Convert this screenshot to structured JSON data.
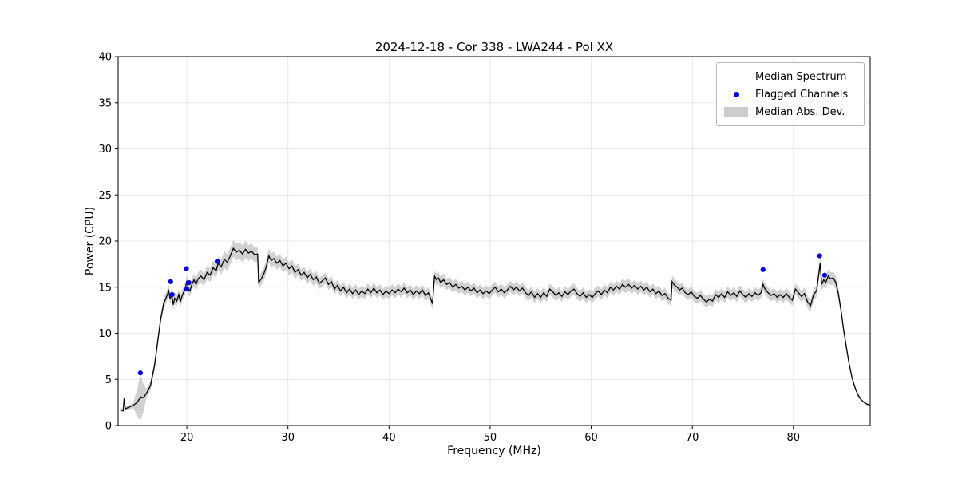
{
  "chart_data": {
    "type": "line",
    "title": "2024-12-18 - Cor 338 - LWA244 - Pol XX",
    "xlabel": "Frequency (MHz)",
    "ylabel": "Power (CPU)",
    "xlim": [
      13.2,
      87.6
    ],
    "ylim": [
      0,
      40
    ],
    "xticks": [
      20,
      30,
      40,
      50,
      60,
      70,
      80
    ],
    "yticks": [
      0,
      5,
      10,
      15,
      20,
      25,
      30,
      35,
      40
    ],
    "grid": true,
    "colors": {
      "line": "#000000",
      "flagged": "#0000ff",
      "band": "#cccccc",
      "grid": "#e8e8e8",
      "frame": "#000000"
    },
    "legend": {
      "position": "upper right",
      "entries": [
        {
          "label": "Median Spectrum",
          "type": "line",
          "color": "#000000"
        },
        {
          "label": "Flagged Channels",
          "type": "marker",
          "color": "#0000ff"
        },
        {
          "label": "Median Abs. Dev.",
          "type": "band",
          "color": "#cccccc"
        }
      ]
    },
    "series": {
      "name": "Median Spectrum",
      "note": "points are [frequency_MHz, power_CPU, median_abs_dev]",
      "points": [
        [
          13.4,
          1.7,
          0.2
        ],
        [
          13.7,
          1.6,
          0.2
        ],
        [
          13.8,
          3.0,
          0.2
        ],
        [
          13.9,
          1.8,
          0.2
        ],
        [
          14.3,
          2.0,
          0.25
        ],
        [
          14.7,
          2.2,
          0.3
        ],
        [
          15.1,
          2.5,
          1.5
        ],
        [
          15.4,
          3.1,
          2.5
        ],
        [
          15.7,
          3.0,
          1.5
        ],
        [
          16.0,
          3.5,
          0.5
        ],
        [
          16.4,
          4.3,
          0.5
        ],
        [
          16.8,
          6.5,
          0.5
        ],
        [
          17.1,
          9.0,
          0.55
        ],
        [
          17.4,
          11.5,
          0.55
        ],
        [
          17.7,
          13.2,
          0.6
        ],
        [
          18.0,
          14.0,
          0.6
        ],
        [
          18.2,
          14.6,
          0.6
        ],
        [
          18.35,
          13.7,
          0.6
        ],
        [
          18.5,
          14.2,
          0.6
        ],
        [
          18.65,
          13.1,
          0.6
        ],
        [
          18.8,
          13.8,
          0.6
        ],
        [
          19.0,
          13.5,
          0.6
        ],
        [
          19.2,
          14.2,
          0.6
        ],
        [
          19.35,
          13.4,
          0.6
        ],
        [
          19.5,
          14.0,
          0.6
        ],
        [
          19.7,
          14.5,
          0.65
        ],
        [
          19.9,
          15.1,
          0.65
        ],
        [
          20.0,
          15.7,
          0.65
        ],
        [
          20.15,
          14.8,
          0.65
        ],
        [
          20.3,
          14.6,
          0.65
        ],
        [
          20.5,
          15.3,
          0.65
        ],
        [
          20.7,
          15.8,
          0.65
        ],
        [
          20.9,
          15.3,
          0.7
        ],
        [
          21.1,
          15.9,
          0.7
        ],
        [
          21.4,
          16.2,
          0.7
        ],
        [
          21.7,
          15.8,
          0.7
        ],
        [
          22.0,
          16.6,
          0.7
        ],
        [
          22.3,
          16.3,
          0.75
        ],
        [
          22.6,
          17.1,
          0.75
        ],
        [
          22.9,
          16.8,
          0.75
        ],
        [
          23.1,
          17.6,
          0.75
        ],
        [
          23.4,
          17.2,
          0.8
        ],
        [
          23.7,
          18.0,
          0.9
        ],
        [
          24.0,
          17.7,
          0.9
        ],
        [
          24.3,
          18.4,
          0.9
        ],
        [
          24.6,
          19.2,
          0.9
        ],
        [
          24.9,
          18.8,
          0.9
        ],
        [
          25.2,
          19.0,
          0.9
        ],
        [
          25.5,
          18.6,
          0.9
        ],
        [
          25.8,
          19.1,
          0.9
        ],
        [
          26.1,
          18.7,
          0.85
        ],
        [
          26.4,
          18.9,
          0.85
        ],
        [
          26.7,
          18.5,
          0.8
        ],
        [
          27.0,
          18.6,
          0.8
        ],
        [
          27.1,
          15.5,
          0.7
        ],
        [
          27.35,
          15.9,
          0.7
        ],
        [
          27.6,
          16.4,
          0.7
        ],
        [
          27.85,
          17.2,
          0.75
        ],
        [
          28.1,
          18.4,
          0.75
        ],
        [
          28.35,
          17.9,
          0.75
        ],
        [
          28.6,
          18.1,
          0.75
        ],
        [
          28.9,
          17.6,
          0.7
        ],
        [
          29.2,
          17.9,
          0.7
        ],
        [
          29.5,
          17.3,
          0.7
        ],
        [
          29.8,
          17.6,
          0.7
        ],
        [
          30.1,
          17.0,
          0.7
        ],
        [
          30.4,
          17.3,
          0.7
        ],
        [
          30.7,
          16.6,
          0.7
        ],
        [
          31.0,
          16.9,
          0.65
        ],
        [
          31.3,
          16.3,
          0.65
        ],
        [
          31.6,
          16.6,
          0.65
        ],
        [
          31.9,
          16.0,
          0.65
        ],
        [
          32.2,
          16.4,
          0.65
        ],
        [
          32.5,
          15.8,
          0.65
        ],
        [
          32.8,
          16.1,
          0.65
        ],
        [
          33.1,
          15.4,
          0.6
        ],
        [
          33.4,
          15.7,
          0.6
        ],
        [
          33.7,
          16.0,
          0.6
        ],
        [
          34.0,
          15.3,
          0.6
        ],
        [
          34.3,
          15.6,
          0.6
        ],
        [
          34.6,
          14.8,
          0.6
        ],
        [
          34.9,
          15.2,
          0.6
        ],
        [
          35.2,
          14.6,
          0.6
        ],
        [
          35.5,
          15.0,
          0.6
        ],
        [
          35.8,
          14.4,
          0.6
        ],
        [
          36.1,
          14.8,
          0.6
        ],
        [
          36.4,
          14.3,
          0.6
        ],
        [
          36.7,
          14.7,
          0.6
        ],
        [
          37.0,
          14.2,
          0.6
        ],
        [
          37.3,
          14.6,
          0.6
        ],
        [
          37.6,
          14.3,
          0.6
        ],
        [
          37.9,
          14.8,
          0.6
        ],
        [
          38.2,
          14.4,
          0.6
        ],
        [
          38.5,
          14.9,
          0.6
        ],
        [
          38.8,
          14.4,
          0.6
        ],
        [
          39.1,
          14.7,
          0.6
        ],
        [
          39.4,
          14.2,
          0.6
        ],
        [
          39.7,
          14.6,
          0.6
        ],
        [
          40.0,
          14.3,
          0.6
        ],
        [
          40.3,
          14.7,
          0.6
        ],
        [
          40.6,
          14.4,
          0.6
        ],
        [
          40.9,
          14.8,
          0.6
        ],
        [
          41.2,
          14.5,
          0.6
        ],
        [
          41.5,
          14.9,
          0.6
        ],
        [
          41.8,
          14.4,
          0.6
        ],
        [
          42.1,
          14.7,
          0.6
        ],
        [
          42.4,
          14.2,
          0.6
        ],
        [
          42.7,
          14.6,
          0.6
        ],
        [
          43.0,
          14.3,
          0.6
        ],
        [
          43.3,
          14.7,
          0.6
        ],
        [
          43.6,
          14.1,
          0.6
        ],
        [
          43.9,
          14.4,
          0.6
        ],
        [
          44.1,
          13.8,
          0.6
        ],
        [
          44.3,
          13.2,
          0.6
        ],
        [
          44.5,
          16.2,
          0.65
        ],
        [
          44.7,
          15.8,
          0.65
        ],
        [
          44.9,
          16.0,
          0.65
        ],
        [
          45.1,
          15.5,
          0.65
        ],
        [
          45.4,
          15.8,
          0.65
        ],
        [
          45.7,
          15.3,
          0.6
        ],
        [
          46.0,
          15.5,
          0.6
        ],
        [
          46.3,
          15.0,
          0.6
        ],
        [
          46.6,
          15.3,
          0.6
        ],
        [
          46.9,
          14.9,
          0.6
        ],
        [
          47.2,
          15.1,
          0.6
        ],
        [
          47.5,
          14.7,
          0.6
        ],
        [
          47.8,
          15.0,
          0.6
        ],
        [
          48.1,
          14.6,
          0.6
        ],
        [
          48.4,
          14.9,
          0.6
        ],
        [
          48.7,
          14.4,
          0.6
        ],
        [
          49.0,
          14.7,
          0.6
        ],
        [
          49.3,
          14.3,
          0.6
        ],
        [
          49.6,
          14.6,
          0.6
        ],
        [
          49.9,
          14.3,
          0.6
        ],
        [
          50.2,
          14.7,
          0.6
        ],
        [
          50.5,
          15.0,
          0.6
        ],
        [
          50.8,
          14.5,
          0.6
        ],
        [
          51.1,
          14.8,
          0.6
        ],
        [
          51.4,
          14.4,
          0.6
        ],
        [
          51.7,
          14.7,
          0.6
        ],
        [
          52.0,
          15.1,
          0.6
        ],
        [
          52.3,
          14.7,
          0.6
        ],
        [
          52.6,
          15.0,
          0.6
        ],
        [
          52.9,
          14.6,
          0.6
        ],
        [
          53.2,
          14.9,
          0.6
        ],
        [
          53.5,
          14.4,
          0.6
        ],
        [
          53.8,
          14.1,
          0.6
        ],
        [
          54.1,
          14.5,
          0.6
        ],
        [
          54.4,
          13.9,
          0.6
        ],
        [
          54.7,
          14.3,
          0.6
        ],
        [
          55.0,
          13.9,
          0.6
        ],
        [
          55.3,
          14.4,
          0.6
        ],
        [
          55.6,
          14.0,
          0.6
        ],
        [
          55.9,
          14.8,
          0.6
        ],
        [
          56.2,
          14.5,
          0.6
        ],
        [
          56.5,
          14.1,
          0.6
        ],
        [
          56.8,
          14.4,
          0.6
        ],
        [
          57.1,
          14.0,
          0.6
        ],
        [
          57.4,
          14.5,
          0.6
        ],
        [
          57.7,
          14.2,
          0.6
        ],
        [
          58.0,
          14.6,
          0.6
        ],
        [
          58.3,
          14.8,
          0.6
        ],
        [
          58.6,
          14.3,
          0.6
        ],
        [
          58.9,
          14.0,
          0.6
        ],
        [
          59.2,
          14.4,
          0.6
        ],
        [
          59.5,
          13.9,
          0.6
        ],
        [
          59.8,
          14.2,
          0.6
        ],
        [
          60.1,
          13.9,
          0.6
        ],
        [
          60.4,
          14.3,
          0.6
        ],
        [
          60.7,
          14.6,
          0.6
        ],
        [
          61.0,
          14.2,
          0.6
        ],
        [
          61.3,
          14.7,
          0.6
        ],
        [
          61.6,
          14.4,
          0.6
        ],
        [
          61.9,
          15.0,
          0.6
        ],
        [
          62.2,
          14.7,
          0.6
        ],
        [
          62.5,
          15.1,
          0.6
        ],
        [
          62.8,
          14.8,
          0.6
        ],
        [
          63.1,
          15.3,
          0.65
        ],
        [
          63.4,
          15.0,
          0.65
        ],
        [
          63.7,
          15.3,
          0.65
        ],
        [
          64.0,
          14.9,
          0.6
        ],
        [
          64.3,
          15.2,
          0.6
        ],
        [
          64.6,
          14.8,
          0.6
        ],
        [
          64.9,
          15.1,
          0.6
        ],
        [
          65.2,
          14.7,
          0.6
        ],
        [
          65.5,
          15.0,
          0.6
        ],
        [
          65.8,
          14.5,
          0.6
        ],
        [
          66.1,
          14.8,
          0.6
        ],
        [
          66.4,
          14.3,
          0.6
        ],
        [
          66.7,
          14.6,
          0.6
        ],
        [
          67.0,
          14.1,
          0.6
        ],
        [
          67.3,
          14.3,
          0.6
        ],
        [
          67.6,
          13.8,
          0.6
        ],
        [
          67.9,
          13.6,
          0.6
        ],
        [
          68.0,
          15.6,
          0.65
        ],
        [
          68.25,
          15.2,
          0.65
        ],
        [
          68.5,
          15.0,
          0.6
        ],
        [
          68.75,
          14.7,
          0.6
        ],
        [
          69.0,
          14.9,
          0.6
        ],
        [
          69.3,
          14.4,
          0.6
        ],
        [
          69.6,
          14.2,
          0.6
        ],
        [
          69.9,
          14.5,
          0.6
        ],
        [
          70.2,
          14.0,
          0.6
        ],
        [
          70.5,
          13.8,
          0.6
        ],
        [
          70.8,
          14.1,
          0.6
        ],
        [
          71.1,
          13.7,
          0.6
        ],
        [
          71.4,
          13.4,
          0.6
        ],
        [
          71.7,
          13.7,
          0.6
        ],
        [
          72.0,
          13.5,
          0.6
        ],
        [
          72.3,
          14.2,
          0.6
        ],
        [
          72.6,
          13.9,
          0.6
        ],
        [
          72.9,
          14.3,
          0.6
        ],
        [
          73.2,
          13.9,
          0.6
        ],
        [
          73.5,
          14.5,
          0.6
        ],
        [
          73.8,
          14.1,
          0.6
        ],
        [
          74.1,
          14.4,
          0.6
        ],
        [
          74.4,
          14.0,
          0.6
        ],
        [
          74.7,
          14.6,
          0.6
        ],
        [
          75.0,
          14.2,
          0.6
        ],
        [
          75.3,
          13.9,
          0.6
        ],
        [
          75.6,
          14.3,
          0.6
        ],
        [
          75.9,
          14.0,
          0.6
        ],
        [
          76.2,
          14.4,
          0.6
        ],
        [
          76.5,
          14.1,
          0.6
        ],
        [
          76.8,
          14.4,
          0.6
        ],
        [
          77.0,
          15.3,
          0.6
        ],
        [
          77.2,
          14.8,
          0.6
        ],
        [
          77.5,
          14.4,
          0.6
        ],
        [
          77.8,
          14.1,
          0.6
        ],
        [
          78.1,
          14.3,
          0.6
        ],
        [
          78.4,
          13.9,
          0.6
        ],
        [
          78.7,
          14.2,
          0.6
        ],
        [
          79.0,
          13.9,
          0.6
        ],
        [
          79.3,
          14.3,
          0.6
        ],
        [
          79.6,
          13.9,
          0.6
        ],
        [
          79.9,
          13.6,
          0.6
        ],
        [
          80.2,
          14.8,
          0.6
        ],
        [
          80.5,
          14.4,
          0.6
        ],
        [
          80.8,
          14.0,
          0.6
        ],
        [
          81.1,
          14.3,
          0.65
        ],
        [
          81.4,
          13.4,
          0.65
        ],
        [
          81.7,
          13.0,
          0.65
        ],
        [
          82.0,
          14.2,
          0.65
        ],
        [
          82.3,
          14.6,
          0.65
        ],
        [
          82.5,
          16.3,
          0.7
        ],
        [
          82.65,
          17.6,
          0.7
        ],
        [
          82.8,
          15.3,
          0.7
        ],
        [
          83.0,
          15.8,
          0.7
        ],
        [
          83.2,
          15.5,
          0.7
        ],
        [
          83.45,
          16.2,
          0.7
        ],
        [
          83.7,
          15.9,
          0.7
        ],
        [
          83.95,
          16.0,
          0.7
        ],
        [
          84.2,
          15.5,
          0.7
        ],
        [
          84.45,
          14.3,
          0.6
        ],
        [
          84.7,
          12.6,
          0.5
        ],
        [
          84.95,
          10.6,
          0.4
        ],
        [
          85.2,
          8.8,
          0.35
        ],
        [
          85.5,
          6.8,
          0.3
        ],
        [
          85.8,
          5.2,
          0.25
        ],
        [
          86.1,
          4.1,
          0.2
        ],
        [
          86.4,
          3.3,
          0.18
        ],
        [
          86.7,
          2.8,
          0.15
        ],
        [
          87.0,
          2.5,
          0.12
        ],
        [
          87.3,
          2.3,
          0.1
        ],
        [
          87.6,
          2.2,
          0.1
        ]
      ]
    },
    "flagged_channels": [
      [
        15.4,
        5.7
      ],
      [
        18.4,
        15.6
      ],
      [
        18.55,
        14.2
      ],
      [
        19.95,
        17.0
      ],
      [
        20.0,
        14.8
      ],
      [
        20.2,
        15.5
      ],
      [
        23.0,
        17.8
      ],
      [
        77.0,
        16.9
      ],
      [
        82.6,
        18.4
      ],
      [
        83.1,
        16.3
      ]
    ]
  }
}
